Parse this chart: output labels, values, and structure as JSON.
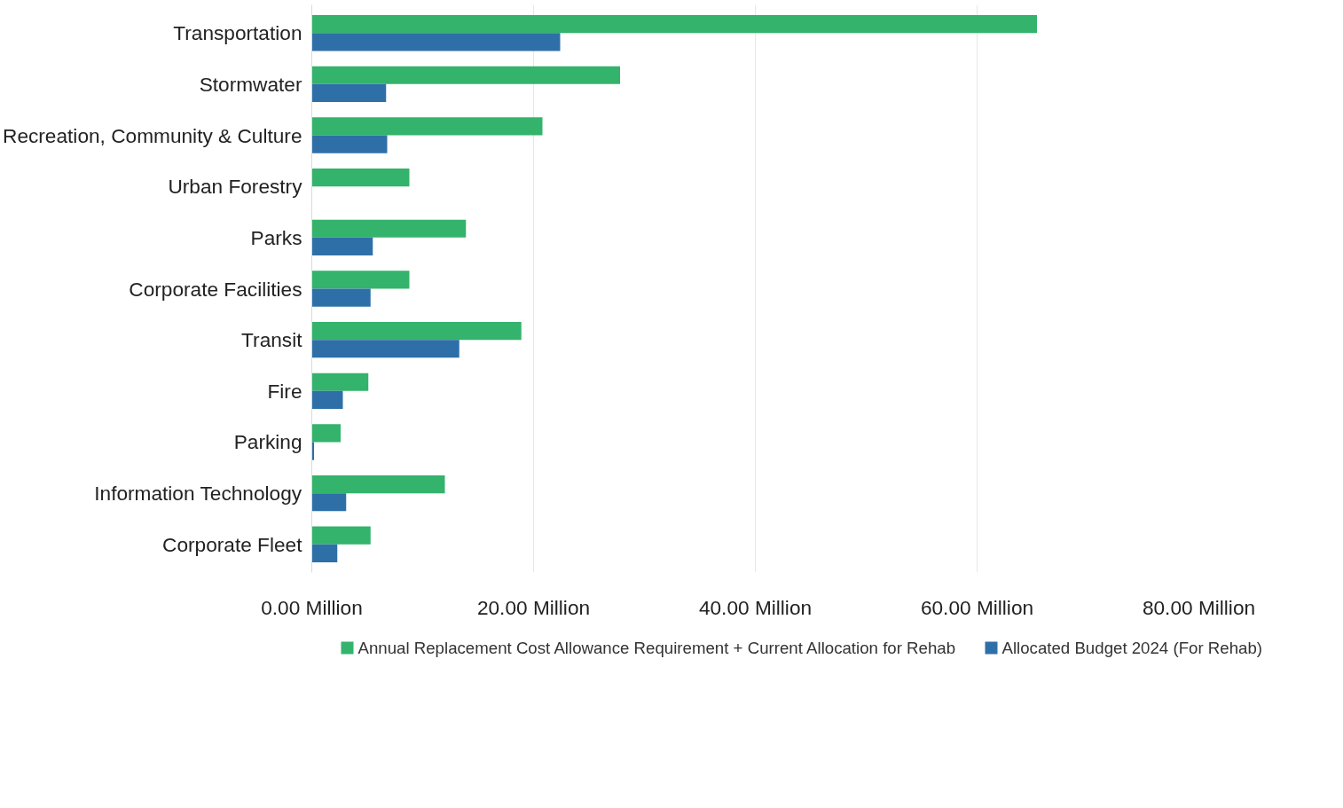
{
  "chart_data": {
    "type": "bar",
    "orientation": "horizontal",
    "categories": [
      "Transportation",
      "Stormwater",
      "Recreation, Community & Culture",
      "Urban Forestry",
      "Parks",
      "Corporate Facilities",
      "Transit",
      "Fire",
      "Parking",
      "Information Technology",
      "Corporate Fleet"
    ],
    "series": [
      {
        "name": "Annual Replacement Cost Allowance Requirement + Current Allocation for Rehab",
        "color": "#33b36b",
        "values": [
          65.4,
          27.8,
          20.8,
          8.8,
          13.9,
          8.8,
          18.9,
          5.1,
          2.6,
          12.0,
          5.3
        ]
      },
      {
        "name": "Allocated Budget 2024 (For Rehab)",
        "color": "#2e6fa8",
        "values": [
          22.4,
          6.7,
          6.8,
          null,
          5.5,
          5.3,
          13.3,
          2.8,
          0.2,
          3.1,
          2.3
        ]
      }
    ],
    "xlim": [
      0,
      80
    ],
    "xticks": [
      {
        "value": 0,
        "label": "0.00 Million"
      },
      {
        "value": 20,
        "label": "20.00 Million"
      },
      {
        "value": 40,
        "label": "40.00 Million"
      },
      {
        "value": 60,
        "label": "60.00 Million"
      },
      {
        "value": 80,
        "label": "80.00 Million"
      }
    ],
    "grid": "x",
    "legend": "bottom"
  }
}
